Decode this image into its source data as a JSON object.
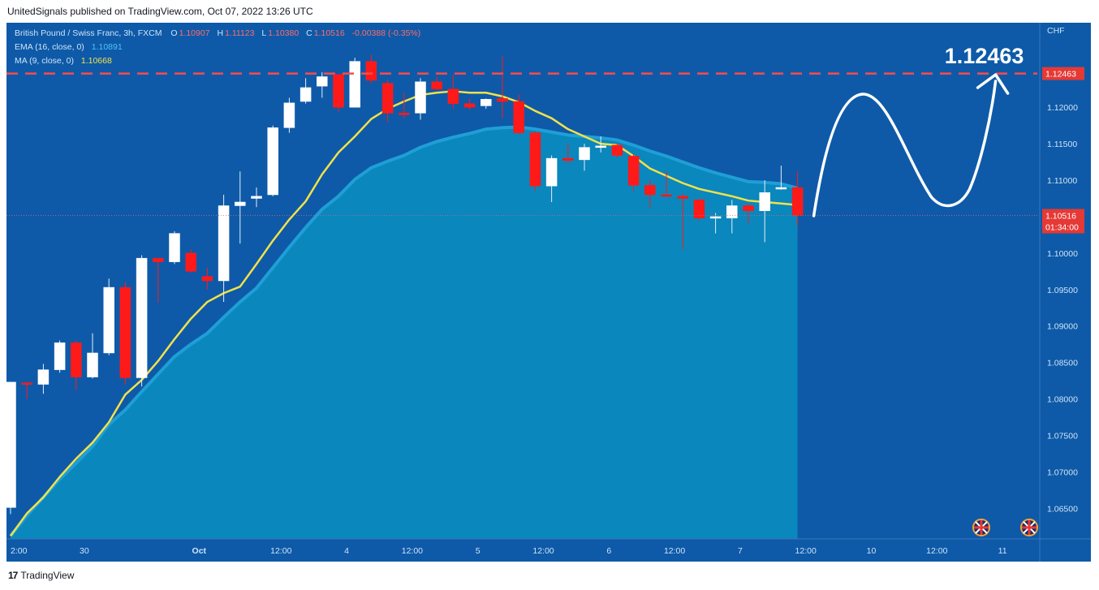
{
  "header": {
    "text": "UnitedSignals published on TradingView.com, Oct 07, 2022 13:26 UTC"
  },
  "footer": {
    "logo_glyph": "17",
    "brand": "TradingView"
  },
  "legend": {
    "line1": {
      "symbol": "British Pound / Swiss Franc, 3h, FXCM",
      "o_label": "O",
      "o": "1.10907",
      "h_label": "H",
      "h": "1.11123",
      "l_label": "L",
      "l": "1.10380",
      "c_label": "C",
      "c": "1.10516",
      "change": "-0.00388 (-0.35%)"
    },
    "line2": {
      "label": "EMA (16, close, 0)",
      "value": "1.10891"
    },
    "line3": {
      "label": "MA (9, close, 0)",
      "value": "1.10668"
    }
  },
  "colors": {
    "background": "#0e5aa8",
    "area_fill": "#0a87bd",
    "area_line": "#1f9fd6",
    "ma_line": "#f2e14a",
    "candle_up": "#ffffff",
    "candle_down": "#ff1a1a",
    "target_line": "#ff4a4a",
    "price_label_bg": "#e53935",
    "text": "#cfe3f7",
    "legend_values": "#ff6b6b",
    "ema_value": "#4fc3f7",
    "ma_value": "#f2e14a"
  },
  "chart_data": {
    "type": "candlestick",
    "currency": "CHF",
    "target_price": "1.12463",
    "target_label": "1.12463",
    "current_price": "1.10516",
    "countdown": "01:34:00",
    "ylim": [
      1.0608,
      1.1316
    ],
    "y_ticks": [
      "1.12000",
      "1.11500",
      "1.11000",
      "1.10000",
      "1.09500",
      "1.09000",
      "1.08500",
      "1.08000",
      "1.07500",
      "1.07000",
      "1.06500"
    ],
    "x_ticks": [
      {
        "label": "2:00",
        "index": 0
      },
      {
        "label": "30",
        "index": 4.5
      },
      {
        "label": "Oct",
        "index": 11.5
      },
      {
        "label": "12:00",
        "index": 16.5
      },
      {
        "label": "4",
        "index": 20.5
      },
      {
        "label": "12:00",
        "index": 24.5
      },
      {
        "label": "5",
        "index": 28.5
      },
      {
        "label": "12:00",
        "index": 32.5
      },
      {
        "label": "6",
        "index": 36.5
      },
      {
        "label": "12:00",
        "index": 40.5
      },
      {
        "label": "7",
        "index": 44.5
      },
      {
        "label": "12:00",
        "index": 48.5
      },
      {
        "label": "10",
        "index": 52.5
      },
      {
        "label": "12:00",
        "index": 56.5
      },
      {
        "label": "11",
        "index": 60.5
      }
    ],
    "candles": [
      {
        "o": 1.0651,
        "h": 1.0823,
        "l": 1.0642,
        "c": 1.0823
      },
      {
        "o": 1.0822,
        "h": 1.0823,
        "l": 1.08,
        "c": 1.082
      },
      {
        "o": 1.082,
        "h": 1.0848,
        "l": 1.0807,
        "c": 1.084
      },
      {
        "o": 1.084,
        "h": 1.088,
        "l": 1.0836,
        "c": 1.0877
      },
      {
        "o": 1.0877,
        "h": 1.088,
        "l": 1.0812,
        "c": 1.083
      },
      {
        "o": 1.083,
        "h": 1.089,
        "l": 1.0828,
        "c": 1.0863
      },
      {
        "o": 1.0863,
        "h": 1.0965,
        "l": 1.086,
        "c": 1.0953
      },
      {
        "o": 1.0953,
        "h": 1.096,
        "l": 1.082,
        "c": 1.0829
      },
      {
        "o": 1.0829,
        "h": 1.0997,
        "l": 1.0817,
        "c": 1.0993
      },
      {
        "o": 1.0993,
        "h": 1.0993,
        "l": 1.0932,
        "c": 1.0988
      },
      {
        "o": 1.0988,
        "h": 1.103,
        "l": 1.0985,
        "c": 1.1027
      },
      {
        "o": 1.1,
        "h": 1.1005,
        "l": 1.0973,
        "c": 1.0975
      },
      {
        "o": 1.0968,
        "h": 1.098,
        "l": 1.095,
        "c": 1.0962
      },
      {
        "o": 1.0962,
        "h": 1.108,
        "l": 1.0933,
        "c": 1.1065
      },
      {
        "o": 1.1065,
        "h": 1.1112,
        "l": 1.1013,
        "c": 1.107
      },
      {
        "o": 1.1075,
        "h": 1.109,
        "l": 1.1063,
        "c": 1.1078
      },
      {
        "o": 1.108,
        "h": 1.1175,
        "l": 1.1078,
        "c": 1.1172
      },
      {
        "o": 1.1172,
        "h": 1.1213,
        "l": 1.1165,
        "c": 1.1206
      },
      {
        "o": 1.1208,
        "h": 1.124,
        "l": 1.1205,
        "c": 1.1227
      },
      {
        "o": 1.1229,
        "h": 1.1248,
        "l": 1.1213,
        "c": 1.1242
      },
      {
        "o": 1.1245,
        "h": 1.1245,
        "l": 1.1193,
        "c": 1.12
      },
      {
        "o": 1.12,
        "h": 1.1268,
        "l": 1.12,
        "c": 1.1263
      },
      {
        "o": 1.1263,
        "h": 1.1272,
        "l": 1.1233,
        "c": 1.1237
      },
      {
        "o": 1.1233,
        "h": 1.1238,
        "l": 1.118,
        "c": 1.1192
      },
      {
        "o": 1.1192,
        "h": 1.122,
        "l": 1.1185,
        "c": 1.119
      },
      {
        "o": 1.1192,
        "h": 1.124,
        "l": 1.1183,
        "c": 1.1235
      },
      {
        "o": 1.1235,
        "h": 1.1242,
        "l": 1.1223,
        "c": 1.1225
      },
      {
        "o": 1.1225,
        "h": 1.1245,
        "l": 1.1198,
        "c": 1.1205
      },
      {
        "o": 1.1205,
        "h": 1.1212,
        "l": 1.1197,
        "c": 1.12
      },
      {
        "o": 1.1202,
        "h": 1.1212,
        "l": 1.1198,
        "c": 1.1211
      },
      {
        "o": 1.1212,
        "h": 1.127,
        "l": 1.1185,
        "c": 1.1208
      },
      {
        "o": 1.1208,
        "h": 1.1218,
        "l": 1.1163,
        "c": 1.1165
      },
      {
        "o": 1.1165,
        "h": 1.1167,
        "l": 1.1085,
        "c": 1.1092
      },
      {
        "o": 1.1092,
        "h": 1.1134,
        "l": 1.107,
        "c": 1.113
      },
      {
        "o": 1.113,
        "h": 1.115,
        "l": 1.1123,
        "c": 1.1127
      },
      {
        "o": 1.1128,
        "h": 1.115,
        "l": 1.1113,
        "c": 1.1145
      },
      {
        "o": 1.1145,
        "h": 1.116,
        "l": 1.1138,
        "c": 1.1147
      },
      {
        "o": 1.1148,
        "h": 1.115,
        "l": 1.1131,
        "c": 1.1134
      },
      {
        "o": 1.1133,
        "h": 1.1136,
        "l": 1.1085,
        "c": 1.1093
      },
      {
        "o": 1.1093,
        "h": 1.11,
        "l": 1.1062,
        "c": 1.108
      },
      {
        "o": 1.108,
        "h": 1.1112,
        "l": 1.1078,
        "c": 1.1078
      },
      {
        "o": 1.1078,
        "h": 1.1082,
        "l": 1.1005,
        "c": 1.1075
      },
      {
        "o": 1.1073,
        "h": 1.1075,
        "l": 1.1045,
        "c": 1.1048
      },
      {
        "o": 1.1048,
        "h": 1.1055,
        "l": 1.1027,
        "c": 1.105
      },
      {
        "o": 1.1048,
        "h": 1.1073,
        "l": 1.1027,
        "c": 1.1065
      },
      {
        "o": 1.1065,
        "h": 1.1068,
        "l": 1.104,
        "c": 1.1058
      },
      {
        "o": 1.1058,
        "h": 1.11,
        "l": 1.1015,
        "c": 1.1083
      },
      {
        "o": 1.1088,
        "h": 1.112,
        "l": 1.1087,
        "c": 1.109
      },
      {
        "o": 1.109,
        "h": 1.1112,
        "l": 1.1038,
        "c": 1.1052
      }
    ],
    "ema16": [
      1.0612,
      1.064,
      1.0665,
      1.069,
      1.0712,
      1.0735,
      1.0765,
      1.0785,
      1.081,
      1.0834,
      1.0858,
      1.0875,
      1.089,
      1.0912,
      1.0933,
      1.0952,
      1.098,
      1.1008,
      1.1035,
      1.106,
      1.1078,
      1.1101,
      1.1117,
      1.1126,
      1.1134,
      1.1145,
      1.1153,
      1.1159,
      1.1164,
      1.117,
      1.1172,
      1.1173,
      1.117,
      1.1166,
      1.1162,
      1.116,
      1.1158,
      1.1155,
      1.1148,
      1.114,
      1.1133,
      1.1125,
      1.1117,
      1.111,
      1.1104,
      1.1098,
      1.1097,
      1.1095,
      1.1089
    ],
    "ma9": [
      1.0612,
      1.0643,
      1.0665,
      1.0693,
      1.0718,
      1.074,
      1.0768,
      1.0806,
      1.0826,
      1.0852,
      1.0882,
      1.091,
      1.0933,
      1.0945,
      1.0954,
      1.0985,
      1.1017,
      1.1046,
      1.1071,
      1.1108,
      1.1138,
      1.116,
      1.1184,
      1.1198,
      1.1208,
      1.1217,
      1.122,
      1.1222,
      1.122,
      1.122,
      1.1215,
      1.1207,
      1.1195,
      1.1185,
      1.117,
      1.116,
      1.115,
      1.1148,
      1.1133,
      1.1116,
      1.1106,
      1.1096,
      1.1088,
      1.1083,
      1.1078,
      1.1072,
      1.107,
      1.1068,
      1.1066
    ]
  }
}
